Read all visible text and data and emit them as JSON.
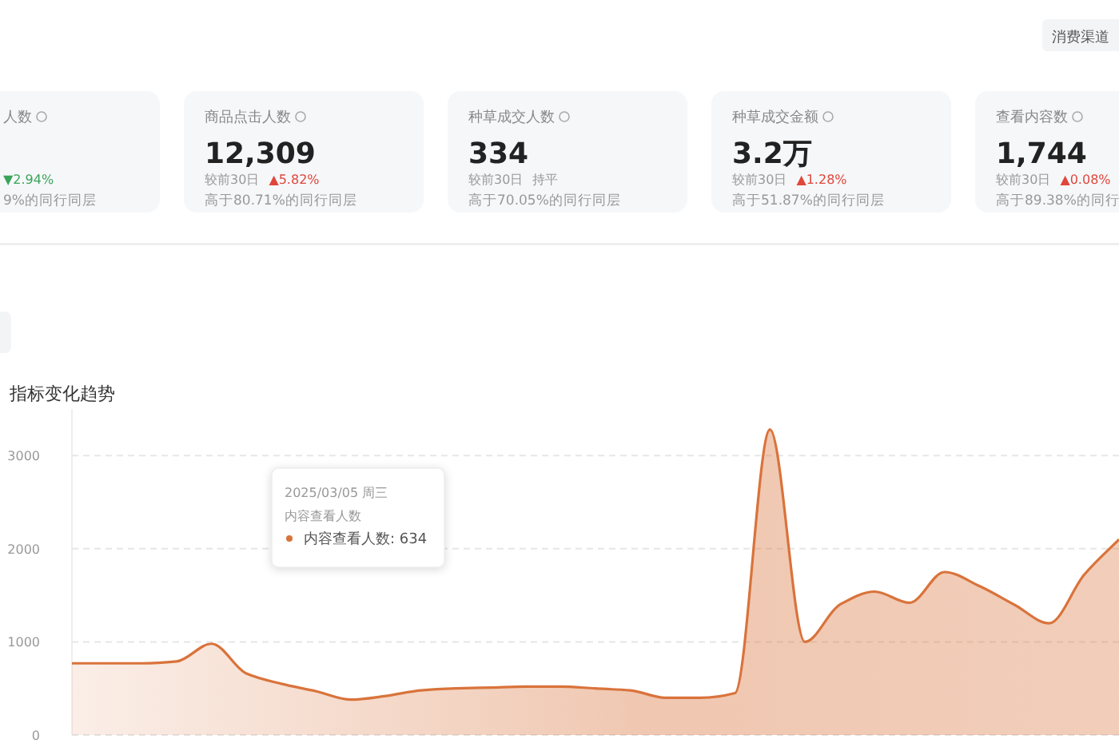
{
  "chart_data": [
    {
      "type": "other",
      "title": "人数",
      "annotations": [
        "▼2.94%",
        "9%的同行同层"
      ],
      "colors": [
        "#3aa55a",
        "#999999"
      ]
    },
    {
      "type": "other",
      "title": "商品点击人数",
      "subtitle": "12,309",
      "annotations": [
        "较前30日",
        "▲5.82%",
        "高于80.71%的同行同层"
      ],
      "colors": [
        "#999999",
        "#e0463a",
        "#999999"
      ]
    },
    {
      "type": "other",
      "title": "种草成交人数",
      "subtitle": "334",
      "annotations": [
        "较前30日",
        "持平",
        "高于70.05%的同行同层"
      ],
      "colors": [
        "#999999",
        "#999999",
        "#999999"
      ]
    },
    {
      "type": "other",
      "title": "种草成交金额",
      "subtitle": "3.2万",
      "annotations": [
        "较前30日",
        "▲1.28%",
        "高于51.87%的同行同层"
      ],
      "colors": [
        "#999999",
        "#e0463a",
        "#999999"
      ]
    },
    {
      "type": "other",
      "title": "查看内容数",
      "subtitle": "1,744",
      "annotations": [
        "较前30日",
        "▲0.08%",
        "高于89.38%的同行"
      ],
      "colors": [
        "#999999",
        "#e0463a",
        "#999999"
      ]
    },
    {
      "type": "other",
      "annotations": [
        "消费渠道"
      ]
    },
    {
      "type": "area",
      "title": "指标变化趋势",
      "categories": [
        null,
        null,
        null,
        null,
        null,
        null,
        null,
        null,
        null,
        null,
        null,
        null,
        null,
        null,
        null,
        null,
        null,
        null,
        null,
        null,
        null,
        null,
        null,
        null,
        null,
        null,
        null,
        null,
        null,
        null,
        null
      ],
      "series": [
        {
          "color": "#d9733b",
          "values": [
            770,
            770,
            770,
            790,
            980,
            660,
            550,
            470,
            380,
            420,
            480,
            500,
            510,
            520,
            520,
            500,
            480,
            400,
            400,
            450,
            3280,
            1000,
            1400,
            1540,
            1420,
            1750,
            1600,
            1400,
            1200,
            1720,
            2100
          ]
        }
      ],
      "ylim": [
        0,
        3500
      ],
      "yticks": [
        0,
        1000,
        2000,
        3000
      ],
      "grid": "y",
      "marker": "none",
      "annotations": [
        "2025/03/05 周三",
        "内容查看人数",
        "内容查看人数: 634"
      ]
    }
  ]
}
